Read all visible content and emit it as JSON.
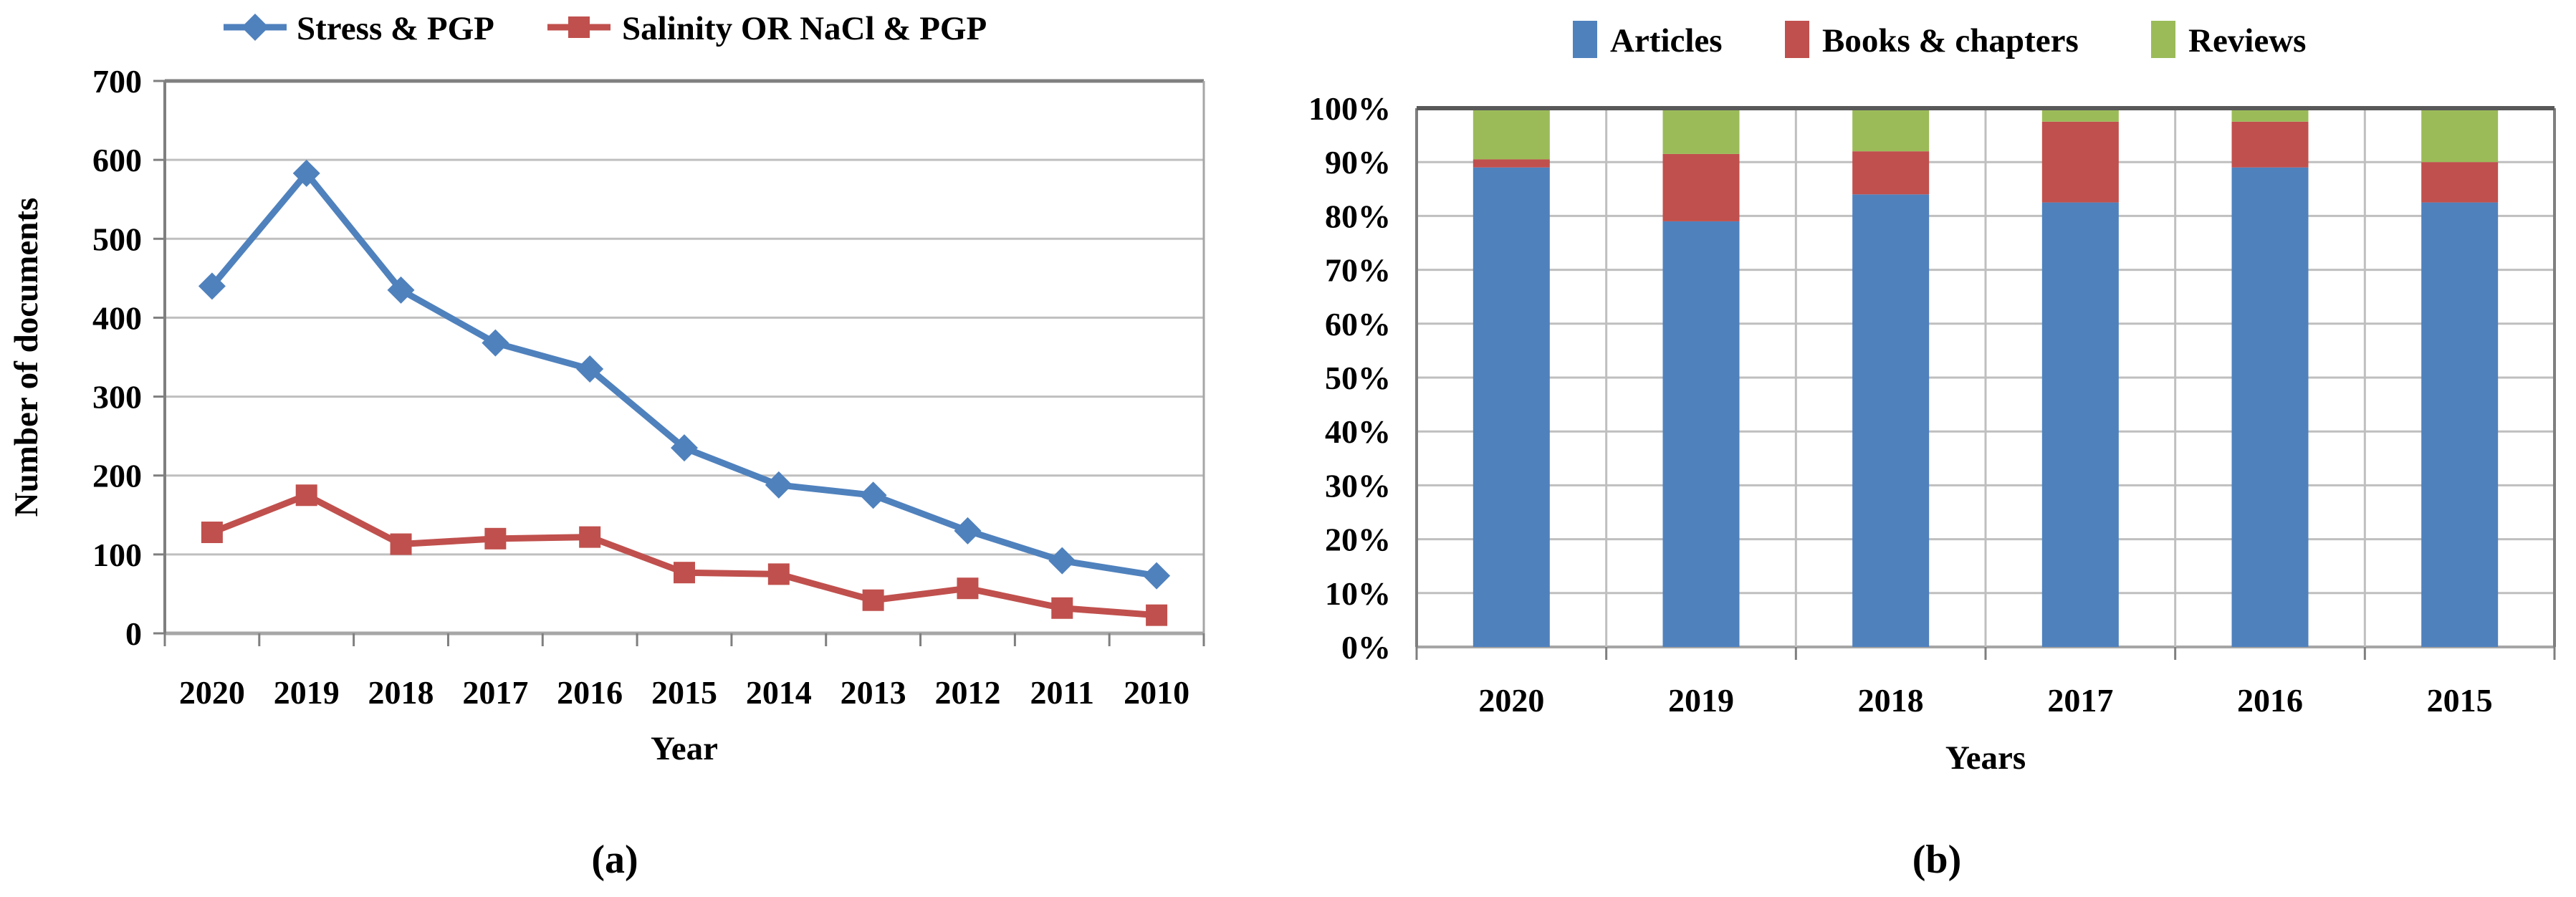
{
  "colors": {
    "blue": "#4F81BD",
    "red": "#C0504D",
    "green": "#9BBB59",
    "gridline": "#BFBFBF",
    "axis_dark": "#7F7F7F",
    "border_top": "#595959",
    "axis_light": "#A6A6A6",
    "text": "#000000"
  },
  "chart_data": [
    {
      "type": "line",
      "caption": "(a)",
      "categories": [
        "2020",
        "2019",
        "2018",
        "2017",
        "2016",
        "2015",
        "2014",
        "2013",
        "2012",
        "2011",
        "2010"
      ],
      "series": [
        {
          "name": "Stress & PGP",
          "color_key": "blue",
          "marker": "diamond",
          "values": [
            440,
            583,
            435,
            368,
            335,
            235,
            188,
            175,
            130,
            92,
            73
          ]
        },
        {
          "name": "Salinity OR NaCl & PGP",
          "color_key": "red",
          "marker": "square",
          "values": [
            128,
            175,
            113,
            120,
            122,
            77,
            75,
            42,
            57,
            32,
            23
          ]
        }
      ],
      "xlabel": "Year",
      "ylabel": "Number of documents",
      "ylim": [
        0,
        700
      ],
      "ytick_step": 100,
      "yticks": [
        "0",
        "100",
        "200",
        "300",
        "400",
        "500",
        "600",
        "700"
      ],
      "legend_position": "top",
      "grid": "horizontal"
    },
    {
      "type": "stacked_bar_100",
      "caption": "(b)",
      "categories": [
        "2020",
        "2019",
        "2018",
        "2017",
        "2016",
        "2015"
      ],
      "series": [
        {
          "name": "Articles",
          "color_key": "blue",
          "values": [
            89,
            79,
            84,
            82.5,
            89,
            82.5
          ]
        },
        {
          "name": "Books & chapters",
          "color_key": "red",
          "values": [
            1.5,
            12.5,
            8,
            15,
            8.5,
            7.5
          ]
        },
        {
          "name": "Reviews",
          "color_key": "green",
          "values": [
            9.5,
            8.5,
            8,
            2.5,
            2.5,
            10
          ]
        }
      ],
      "xlabel": "Years",
      "ylabel": "",
      "ylim": [
        0,
        100
      ],
      "ytick_step": 10,
      "yticks": [
        "0%",
        "10%",
        "20%",
        "30%",
        "40%",
        "50%",
        "60%",
        "70%",
        "80%",
        "90%",
        "100%"
      ],
      "legend_position": "top",
      "grid": "both"
    }
  ]
}
